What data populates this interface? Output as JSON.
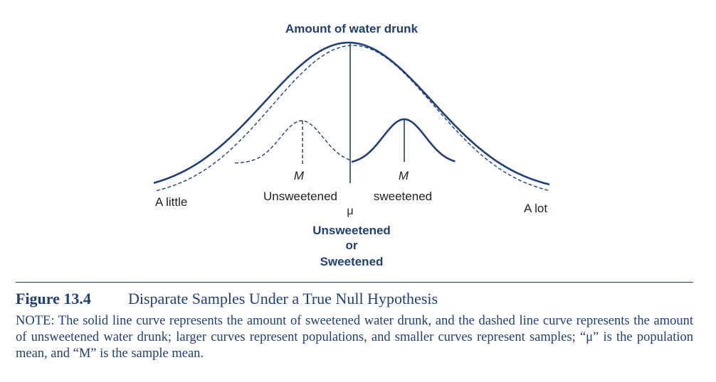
{
  "diagram": {
    "title": "Amount of water drunk",
    "left_label": "A little",
    "right_label": "A lot",
    "mu_symbol": "μ",
    "center_label_lines": [
      "Unsweetened",
      "or",
      "Sweetened"
    ],
    "left_sample": {
      "mean_symbol": "M",
      "label": "Unsweetened"
    },
    "right_sample": {
      "mean_symbol": "M",
      "label": "sweetened"
    },
    "colors": {
      "accent": "#1f3f7a",
      "text": "#222222"
    }
  },
  "caption": {
    "figure_number": "Figure 13.4",
    "title": "Disparate Samples Under a True Null Hypothesis",
    "note_label": "NOTE:",
    "note_text": " The solid line curve represents the amount of sweetened water drunk, and the dashed line curve represents the amount of unsweetened water drunk; larger curves represent populations, and smaller curves represent samples; “μ” is the population mean, and “M” is the sample mean."
  }
}
